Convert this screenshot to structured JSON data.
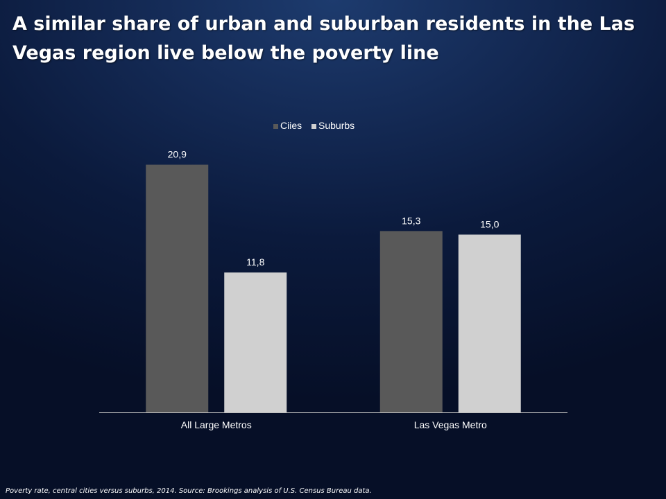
{
  "slide": {
    "title": "A similar share of urban and suburban residents in the Las Vegas region live below the poverty line",
    "footnote": "Poverty rate, central cities versus suburbs, 2014. Source: Brookings analysis of U.S. Census Bureau data."
  },
  "colors": {
    "cities": "#595959",
    "suburbs": "#d0d0d0",
    "axis": "#bfbfbf"
  },
  "chart_data": {
    "type": "bar",
    "categories": [
      "All Large Metros",
      "Las Vegas Metro"
    ],
    "series": [
      {
        "name": "Ciies",
        "values": [
          20.9,
          15.3
        ],
        "labels": [
          "20,9",
          "15,3"
        ]
      },
      {
        "name": "Suburbs",
        "values": [
          11.8,
          15.0
        ],
        "labels": [
          "11,8",
          "15,0"
        ]
      }
    ],
    "ylim": [
      0,
      24
    ],
    "grid": false,
    "legend": "top-center",
    "value_axis_visible": false
  }
}
